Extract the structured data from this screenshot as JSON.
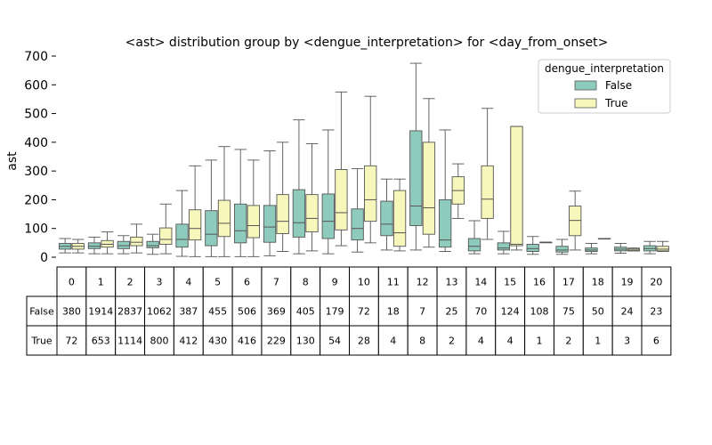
{
  "chart_data": {
    "type": "box",
    "title": "<ast> distribution group by <dengue_interpretation> for <day_from_onset>",
    "ylabel": "ast",
    "xlabel": "",
    "ylim": [
      0,
      700
    ],
    "yticks": [
      0,
      100,
      200,
      300,
      400,
      500,
      600,
      700
    ],
    "categories": [
      "0",
      "1",
      "2",
      "3",
      "4",
      "5",
      "6",
      "7",
      "8",
      "9",
      "10",
      "11",
      "12",
      "13",
      "14",
      "15",
      "16",
      "17",
      "18",
      "19",
      "20"
    ],
    "legend": {
      "title": "dengue_interpretation",
      "position": "top-right"
    },
    "series": [
      {
        "name": "False",
        "color": "#8ecbbc",
        "boxes": [
          {
            "wl": 15,
            "q1": 28,
            "med": 38,
            "q3": 48,
            "wh": 65
          },
          {
            "wl": 12,
            "q1": 30,
            "med": 38,
            "q3": 50,
            "wh": 70
          },
          {
            "wl": 12,
            "q1": 30,
            "med": 40,
            "q3": 55,
            "wh": 75
          },
          {
            "wl": 10,
            "q1": 33,
            "med": 40,
            "q3": 55,
            "wh": 80
          },
          {
            "wl": 3,
            "q1": 35,
            "med": 62,
            "q3": 115,
            "wh": 232
          },
          {
            "wl": 2,
            "q1": 40,
            "med": 80,
            "q3": 162,
            "wh": 338
          },
          {
            "wl": 2,
            "q1": 50,
            "med": 92,
            "q3": 185,
            "wh": 375
          },
          {
            "wl": 5,
            "q1": 52,
            "med": 105,
            "q3": 180,
            "wh": 370
          },
          {
            "wl": 12,
            "q1": 70,
            "med": 120,
            "q3": 235,
            "wh": 478
          },
          {
            "wl": 12,
            "q1": 65,
            "med": 125,
            "q3": 220,
            "wh": 443
          },
          {
            "wl": 18,
            "q1": 60,
            "med": 100,
            "q3": 168,
            "wh": 308
          },
          {
            "wl": 25,
            "q1": 75,
            "med": 115,
            "q3": 195,
            "wh": 272
          },
          {
            "wl": 25,
            "q1": 110,
            "med": 178,
            "q3": 440,
            "wh": 675
          },
          {
            "wl": 20,
            "q1": 35,
            "med": 60,
            "q3": 200,
            "wh": 443
          },
          {
            "wl": 12,
            "q1": 22,
            "med": 38,
            "q3": 65,
            "wh": 127
          },
          {
            "wl": 12,
            "q1": 25,
            "med": 32,
            "q3": 50,
            "wh": 90
          },
          {
            "wl": 10,
            "q1": 20,
            "med": 30,
            "q3": 45,
            "wh": 72
          },
          {
            "wl": 10,
            "q1": 18,
            "med": 25,
            "q3": 38,
            "wh": 62
          },
          {
            "wl": 12,
            "q1": 20,
            "med": 25,
            "q3": 32,
            "wh": 48
          },
          {
            "wl": 14,
            "q1": 22,
            "med": 28,
            "q3": 35,
            "wh": 48
          },
          {
            "wl": 12,
            "q1": 22,
            "med": 30,
            "q3": 40,
            "wh": 55
          }
        ]
      },
      {
        "name": "True",
        "color": "#f7f6bb",
        "boxes": [
          {
            "wl": 15,
            "q1": 28,
            "med": 38,
            "q3": 48,
            "wh": 62
          },
          {
            "wl": 12,
            "q1": 35,
            "med": 45,
            "q3": 58,
            "wh": 88
          },
          {
            "wl": 15,
            "q1": 40,
            "med": 52,
            "q3": 70,
            "wh": 115
          },
          {
            "wl": 12,
            "q1": 45,
            "med": 62,
            "q3": 102,
            "wh": 185
          },
          {
            "wl": 2,
            "q1": 60,
            "med": 100,
            "q3": 165,
            "wh": 318
          },
          {
            "wl": 2,
            "q1": 72,
            "med": 118,
            "q3": 198,
            "wh": 385
          },
          {
            "wl": 2,
            "q1": 68,
            "med": 110,
            "q3": 180,
            "wh": 338
          },
          {
            "wl": 20,
            "q1": 82,
            "med": 125,
            "q3": 218,
            "wh": 400
          },
          {
            "wl": 22,
            "q1": 88,
            "med": 135,
            "q3": 218,
            "wh": 395
          },
          {
            "wl": 40,
            "q1": 95,
            "med": 155,
            "q3": 305,
            "wh": 575
          },
          {
            "wl": 50,
            "q1": 125,
            "med": 200,
            "q3": 318,
            "wh": 560
          },
          {
            "wl": 22,
            "q1": 38,
            "med": 85,
            "q3": 232,
            "wh": 272
          },
          {
            "wl": 35,
            "q1": 80,
            "med": 172,
            "q3": 400,
            "wh": 552
          },
          {
            "wl": 135,
            "q1": 185,
            "med": 232,
            "q3": 280,
            "wh": 325
          },
          {
            "wl": 62,
            "q1": 135,
            "med": 202,
            "q3": 318,
            "wh": 518
          },
          {
            "wl": 25,
            "q1": 40,
            "med": 45,
            "q3": 455,
            "wh": 455
          },
          {
            "wl": 52,
            "q1": 52,
            "med": 52,
            "q3": 52,
            "wh": 52
          },
          {
            "wl": 25,
            "q1": 75,
            "med": 128,
            "q3": 178,
            "wh": 230
          },
          {
            "wl": 65,
            "q1": 65,
            "med": 65,
            "q3": 65,
            "wh": 65
          },
          {
            "wl": 22,
            "q1": 22,
            "med": 25,
            "q3": 30,
            "wh": 32
          },
          {
            "wl": 20,
            "q1": 22,
            "med": 28,
            "q3": 38,
            "wh": 55
          }
        ]
      }
    ],
    "table": {
      "header": [
        "0",
        "1",
        "2",
        "3",
        "4",
        "5",
        "6",
        "7",
        "8",
        "9",
        "10",
        "11",
        "12",
        "13",
        "14",
        "15",
        "16",
        "17",
        "18",
        "19",
        "20"
      ],
      "rows": [
        {
          "label": "False",
          "values": [
            "380",
            "1914",
            "2837",
            "1062",
            "387",
            "455",
            "506",
            "369",
            "405",
            "179",
            "72",
            "18",
            "7",
            "25",
            "70",
            "124",
            "108",
            "75",
            "50",
            "24",
            "23"
          ]
        },
        {
          "label": "True",
          "values": [
            "72",
            "653",
            "1114",
            "800",
            "412",
            "430",
            "416",
            "229",
            "130",
            "54",
            "28",
            "4",
            "8",
            "2",
            "4",
            "4",
            "1",
            "2",
            "1",
            "3",
            "6"
          ]
        }
      ]
    }
  }
}
